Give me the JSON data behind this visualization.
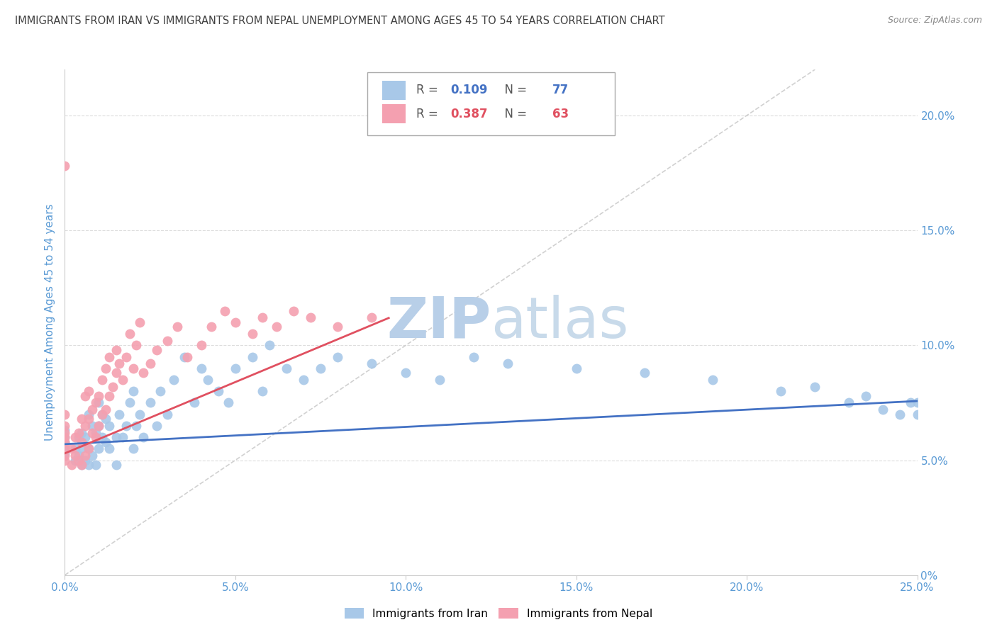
{
  "title": "IMMIGRANTS FROM IRAN VS IMMIGRANTS FROM NEPAL UNEMPLOYMENT AMONG AGES 45 TO 54 YEARS CORRELATION CHART",
  "source": "Source: ZipAtlas.com",
  "ylabel": "Unemployment Among Ages 45 to 54 years",
  "xlim": [
    0,
    0.25
  ],
  "ylim": [
    0,
    0.22
  ],
  "iran_R": 0.109,
  "iran_N": 77,
  "nepal_R": 0.387,
  "nepal_N": 63,
  "iran_color": "#a8c8e8",
  "nepal_color": "#f4a0b0",
  "iran_line_color": "#4472c4",
  "nepal_line_color": "#e05060",
  "ref_line_color": "#cccccc",
  "watermark_color": "#dce8f0",
  "background_color": "#ffffff",
  "grid_color": "#dddddd",
  "axis_label_color": "#5b9bd5",
  "title_color": "#404040",
  "source_color": "#888888",
  "iran_x": [
    0.0,
    0.0,
    0.0,
    0.0,
    0.0,
    0.003,
    0.003,
    0.004,
    0.004,
    0.005,
    0.005,
    0.005,
    0.006,
    0.006,
    0.007,
    0.007,
    0.007,
    0.008,
    0.008,
    0.009,
    0.009,
    0.01,
    0.01,
    0.01,
    0.011,
    0.011,
    0.012,
    0.012,
    0.013,
    0.013,
    0.015,
    0.015,
    0.016,
    0.017,
    0.018,
    0.019,
    0.02,
    0.02,
    0.021,
    0.022,
    0.023,
    0.025,
    0.027,
    0.028,
    0.03,
    0.032,
    0.035,
    0.038,
    0.04,
    0.042,
    0.045,
    0.048,
    0.05,
    0.055,
    0.058,
    0.06,
    0.065,
    0.07,
    0.075,
    0.08,
    0.09,
    0.1,
    0.11,
    0.12,
    0.13,
    0.15,
    0.17,
    0.19,
    0.21,
    0.22,
    0.23,
    0.235,
    0.24,
    0.245,
    0.248,
    0.25,
    0.25
  ],
  "iran_y": [
    0.053,
    0.056,
    0.058,
    0.06,
    0.063,
    0.05,
    0.055,
    0.052,
    0.06,
    0.048,
    0.055,
    0.062,
    0.05,
    0.06,
    0.048,
    0.055,
    0.07,
    0.052,
    0.065,
    0.048,
    0.062,
    0.055,
    0.065,
    0.075,
    0.06,
    0.07,
    0.058,
    0.068,
    0.055,
    0.065,
    0.048,
    0.06,
    0.07,
    0.06,
    0.065,
    0.075,
    0.055,
    0.08,
    0.065,
    0.07,
    0.06,
    0.075,
    0.065,
    0.08,
    0.07,
    0.085,
    0.095,
    0.075,
    0.09,
    0.085,
    0.08,
    0.075,
    0.09,
    0.095,
    0.08,
    0.1,
    0.09,
    0.085,
    0.09,
    0.095,
    0.092,
    0.088,
    0.085,
    0.095,
    0.092,
    0.09,
    0.088,
    0.085,
    0.08,
    0.082,
    0.075,
    0.078,
    0.072,
    0.07,
    0.075,
    0.07,
    0.075
  ],
  "nepal_x": [
    0.0,
    0.0,
    0.0,
    0.0,
    0.0,
    0.0,
    0.0,
    0.0,
    0.0,
    0.002,
    0.002,
    0.003,
    0.003,
    0.004,
    0.004,
    0.005,
    0.005,
    0.005,
    0.006,
    0.006,
    0.006,
    0.007,
    0.007,
    0.007,
    0.008,
    0.008,
    0.009,
    0.009,
    0.01,
    0.01,
    0.011,
    0.011,
    0.012,
    0.012,
    0.013,
    0.013,
    0.014,
    0.015,
    0.015,
    0.016,
    0.017,
    0.018,
    0.019,
    0.02,
    0.021,
    0.022,
    0.023,
    0.025,
    0.027,
    0.03,
    0.033,
    0.036,
    0.04,
    0.043,
    0.047,
    0.05,
    0.055,
    0.058,
    0.062,
    0.067,
    0.072,
    0.08,
    0.09
  ],
  "nepal_y": [
    0.05,
    0.052,
    0.055,
    0.058,
    0.06,
    0.062,
    0.065,
    0.07,
    0.178,
    0.048,
    0.055,
    0.052,
    0.06,
    0.05,
    0.062,
    0.048,
    0.058,
    0.068,
    0.052,
    0.065,
    0.078,
    0.055,
    0.068,
    0.08,
    0.062,
    0.072,
    0.06,
    0.075,
    0.065,
    0.078,
    0.07,
    0.085,
    0.072,
    0.09,
    0.078,
    0.095,
    0.082,
    0.088,
    0.098,
    0.092,
    0.085,
    0.095,
    0.105,
    0.09,
    0.1,
    0.11,
    0.088,
    0.092,
    0.098,
    0.102,
    0.108,
    0.095,
    0.1,
    0.108,
    0.115,
    0.11,
    0.105,
    0.112,
    0.108,
    0.115,
    0.112,
    0.108,
    0.112
  ]
}
